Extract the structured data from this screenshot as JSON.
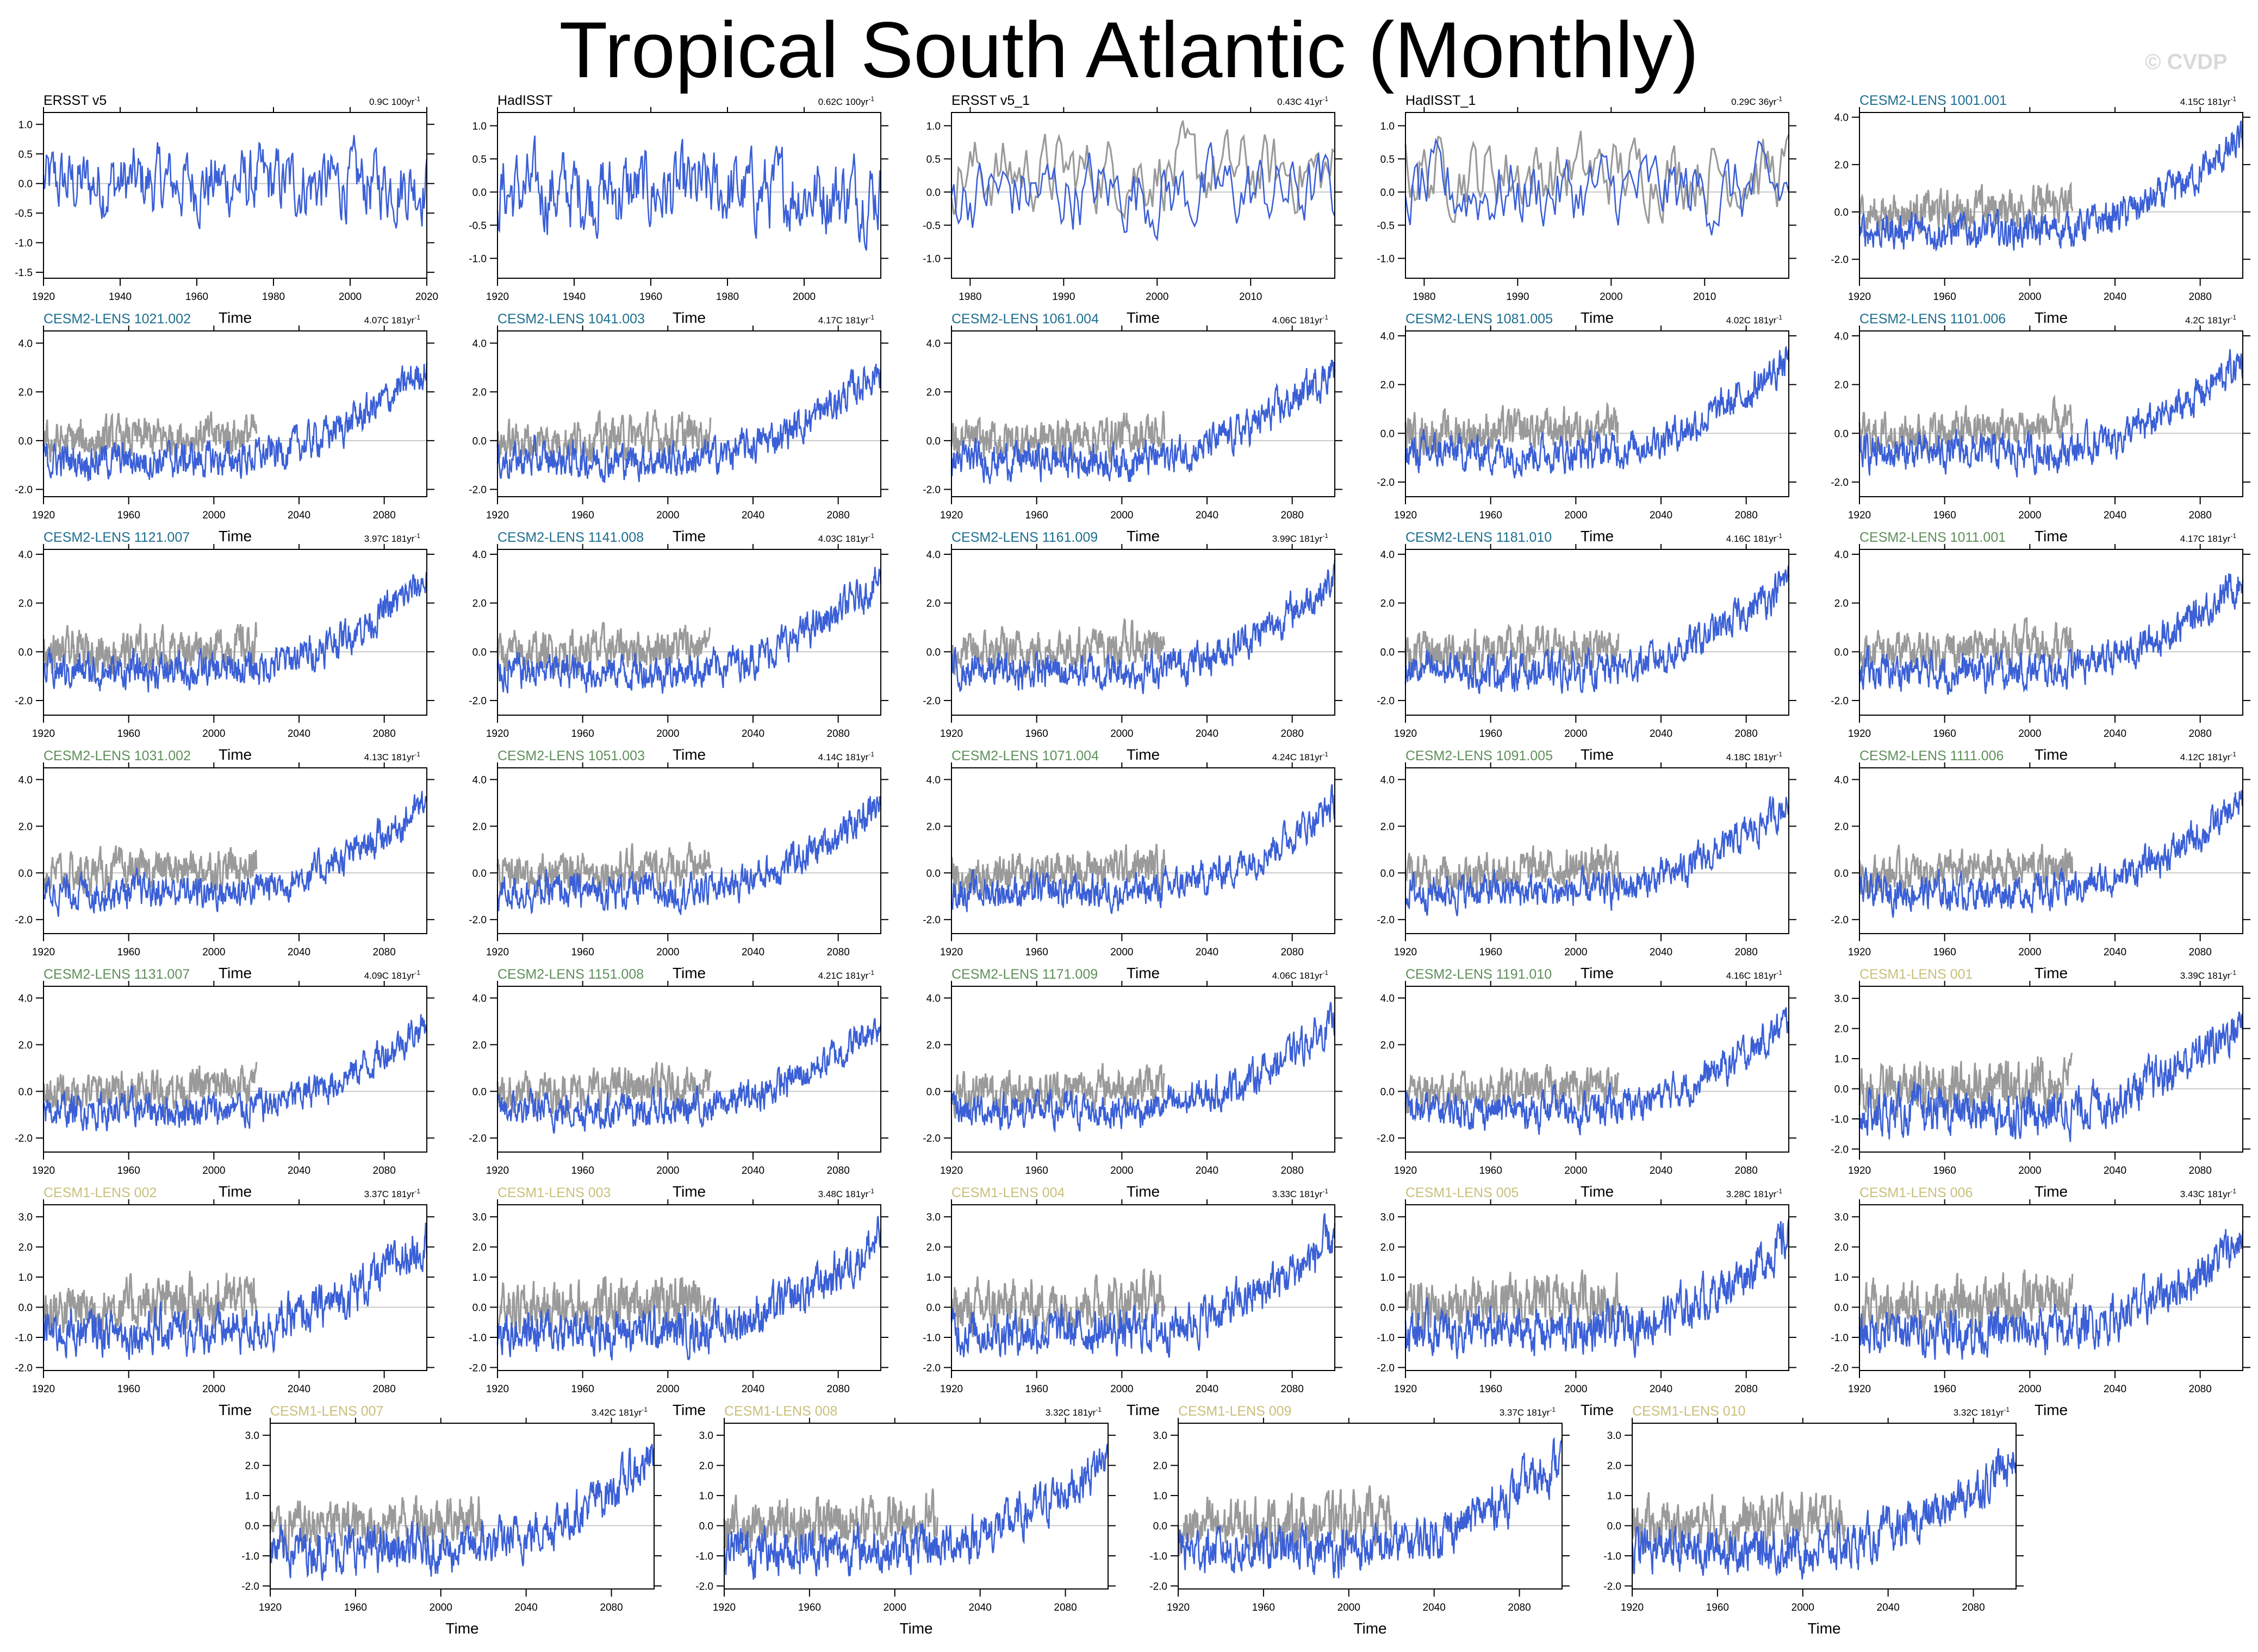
{
  "title": "Tropical South Atlantic (Monthly)",
  "watermark": "© CVDP",
  "colors": {
    "simulation": "#3a5fd6",
    "observation": "#9a9a9a",
    "obs_title": "#000000",
    "cesm2_first": "#1d6e8f",
    "cesm2_second": "#5f8f5a",
    "cesm1": "#c9c07a",
    "zero_line": "#c8c8c8"
  },
  "chart_data": {
    "type": "line",
    "xlabel": "Time",
    "ylabel": "",
    "legend": "none",
    "panels": [
      {
        "title": "ERSST v5",
        "group": "obs",
        "trend": "0.9C 100yr",
        "xlim": [
          1920,
          2020
        ],
        "xticks": [
          1920,
          1940,
          1960,
          1980,
          2000,
          2020
        ],
        "ylim": [
          -1.6,
          1.2
        ],
        "yticks": [
          -1.5,
          -1.0,
          -0.5,
          0.0,
          0.5,
          1.0
        ],
        "obs_overlay": false
      },
      {
        "title": "HadISST",
        "group": "obs",
        "trend": "0.62C 100yr",
        "xlim": [
          1920,
          2020
        ],
        "xticks": [
          1920,
          1940,
          1960,
          1980,
          2000
        ],
        "ylim": [
          -1.3,
          1.2
        ],
        "yticks": [
          -1.0,
          -0.5,
          0.0,
          0.5,
          1.0
        ],
        "obs_overlay": false
      },
      {
        "title": "ERSST v5_1",
        "group": "obs",
        "trend": "0.43C 41yr",
        "xlim": [
          1978,
          2019
        ],
        "xticks": [
          1980,
          1990,
          2000,
          2010
        ],
        "ylim": [
          -1.3,
          1.2
        ],
        "yticks": [
          -1.0,
          -0.5,
          0.0,
          0.5,
          1.0
        ],
        "obs_overlay": true
      },
      {
        "title": "HadISST_1",
        "group": "obs",
        "trend": "0.29C 36yr",
        "xlim": [
          1978,
          2019
        ],
        "xticks": [
          1980,
          1990,
          2000,
          2010
        ],
        "ylim": [
          -1.3,
          1.2
        ],
        "yticks": [
          -1.0,
          -0.5,
          0.0,
          0.5,
          1.0
        ],
        "obs_overlay": true
      },
      {
        "title": "CESM2-LENS 1001.001",
        "group": "cesm2a",
        "trend": "4.15C 181yr",
        "xlim": [
          1920,
          2100
        ],
        "xticks": [
          1920,
          1960,
          2000,
          2040,
          2080
        ],
        "ylim": [
          -2.8,
          4.2
        ],
        "yticks": [
          -2.0,
          0.0,
          2.0,
          4.0
        ],
        "obs_overlay": true
      },
      {
        "title": "CESM2-LENS 1021.002",
        "group": "cesm2a",
        "trend": "4.07C 181yr",
        "xlim": [
          1920,
          2100
        ],
        "xticks": [
          1920,
          1960,
          2000,
          2040,
          2080
        ],
        "ylim": [
          -2.3,
          4.5
        ],
        "yticks": [
          -2.0,
          0.0,
          2.0,
          4.0
        ],
        "obs_overlay": true
      },
      {
        "title": "CESM2-LENS 1041.003",
        "group": "cesm2a",
        "trend": "4.17C 181yr",
        "xlim": [
          1920,
          2100
        ],
        "xticks": [
          1920,
          1960,
          2000,
          2040,
          2080
        ],
        "ylim": [
          -2.3,
          4.5
        ],
        "yticks": [
          -2.0,
          0.0,
          2.0,
          4.0
        ],
        "obs_overlay": true
      },
      {
        "title": "CESM2-LENS 1061.004",
        "group": "cesm2a",
        "trend": "4.06C 181yr",
        "xlim": [
          1920,
          2100
        ],
        "xticks": [
          1920,
          1960,
          2000,
          2040,
          2080
        ],
        "ylim": [
          -2.3,
          4.5
        ],
        "yticks": [
          -2.0,
          0.0,
          2.0,
          4.0
        ],
        "obs_overlay": true
      },
      {
        "title": "CESM2-LENS 1081.005",
        "group": "cesm2a",
        "trend": "4.02C 181yr",
        "xlim": [
          1920,
          2100
        ],
        "xticks": [
          1920,
          1960,
          2000,
          2040,
          2080
        ],
        "ylim": [
          -2.6,
          4.2
        ],
        "yticks": [
          -2.0,
          0.0,
          2.0,
          4.0
        ],
        "obs_overlay": true
      },
      {
        "title": "CESM2-LENS 1101.006",
        "group": "cesm2a",
        "trend": "4.2C 181yr",
        "xlim": [
          1920,
          2100
        ],
        "xticks": [
          1920,
          1960,
          2000,
          2040,
          2080
        ],
        "ylim": [
          -2.6,
          4.2
        ],
        "yticks": [
          -2.0,
          0.0,
          2.0,
          4.0
        ],
        "obs_overlay": true
      },
      {
        "title": "CESM2-LENS 1121.007",
        "group": "cesm2a",
        "trend": "3.97C 181yr",
        "xlim": [
          1920,
          2100
        ],
        "xticks": [
          1920,
          1960,
          2000,
          2040,
          2080
        ],
        "ylim": [
          -2.6,
          4.2
        ],
        "yticks": [
          -2.0,
          0.0,
          2.0,
          4.0
        ],
        "obs_overlay": true
      },
      {
        "title": "CESM2-LENS 1141.008",
        "group": "cesm2a",
        "trend": "4.03C 181yr",
        "xlim": [
          1920,
          2100
        ],
        "xticks": [
          1920,
          1960,
          2000,
          2040,
          2080
        ],
        "ylim": [
          -2.6,
          4.2
        ],
        "yticks": [
          -2.0,
          0.0,
          2.0,
          4.0
        ],
        "obs_overlay": true
      },
      {
        "title": "CESM2-LENS 1161.009",
        "group": "cesm2a",
        "trend": "3.99C 181yr",
        "xlim": [
          1920,
          2100
        ],
        "xticks": [
          1920,
          1960,
          2000,
          2040,
          2080
        ],
        "ylim": [
          -2.6,
          4.2
        ],
        "yticks": [
          -2.0,
          0.0,
          2.0,
          4.0
        ],
        "obs_overlay": true
      },
      {
        "title": "CESM2-LENS 1181.010",
        "group": "cesm2a",
        "trend": "4.16C 181yr",
        "xlim": [
          1920,
          2100
        ],
        "xticks": [
          1920,
          1960,
          2000,
          2040,
          2080
        ],
        "ylim": [
          -2.6,
          4.2
        ],
        "yticks": [
          -2.0,
          0.0,
          2.0,
          4.0
        ],
        "obs_overlay": true
      },
      {
        "title": "CESM2-LENS 1011.001",
        "group": "cesm2b",
        "trend": "4.17C 181yr",
        "xlim": [
          1920,
          2100
        ],
        "xticks": [
          1920,
          1960,
          2000,
          2040,
          2080
        ],
        "ylim": [
          -2.6,
          4.2
        ],
        "yticks": [
          -2.0,
          0.0,
          2.0,
          4.0
        ],
        "obs_overlay": true
      },
      {
        "title": "CESM2-LENS 1031.002",
        "group": "cesm2b",
        "trend": "4.13C 181yr",
        "xlim": [
          1920,
          2100
        ],
        "xticks": [
          1920,
          1960,
          2000,
          2040,
          2080
        ],
        "ylim": [
          -2.6,
          4.5
        ],
        "yticks": [
          -2.0,
          0.0,
          2.0,
          4.0
        ],
        "obs_overlay": true
      },
      {
        "title": "CESM2-LENS 1051.003",
        "group": "cesm2b",
        "trend": "4.14C 181yr",
        "xlim": [
          1920,
          2100
        ],
        "xticks": [
          1920,
          1960,
          2000,
          2040,
          2080
        ],
        "ylim": [
          -2.6,
          4.5
        ],
        "yticks": [
          -2.0,
          0.0,
          2.0,
          4.0
        ],
        "obs_overlay": true
      },
      {
        "title": "CESM2-LENS 1071.004",
        "group": "cesm2b",
        "trend": "4.24C 181yr",
        "xlim": [
          1920,
          2100
        ],
        "xticks": [
          1920,
          1960,
          2000,
          2040,
          2080
        ],
        "ylim": [
          -2.6,
          4.5
        ],
        "yticks": [
          -2.0,
          0.0,
          2.0,
          4.0
        ],
        "obs_overlay": true
      },
      {
        "title": "CESM2-LENS 1091.005",
        "group": "cesm2b",
        "trend": "4.18C 181yr",
        "xlim": [
          1920,
          2100
        ],
        "xticks": [
          1920,
          1960,
          2000,
          2040,
          2080
        ],
        "ylim": [
          -2.6,
          4.5
        ],
        "yticks": [
          -2.0,
          0.0,
          2.0,
          4.0
        ],
        "obs_overlay": true
      },
      {
        "title": "CESM2-LENS 1111.006",
        "group": "cesm2b",
        "trend": "4.12C 181yr",
        "xlim": [
          1920,
          2100
        ],
        "xticks": [
          1920,
          1960,
          2000,
          2040,
          2080
        ],
        "ylim": [
          -2.6,
          4.5
        ],
        "yticks": [
          -2.0,
          0.0,
          2.0,
          4.0
        ],
        "obs_overlay": true
      },
      {
        "title": "CESM2-LENS 1131.007",
        "group": "cesm2b",
        "trend": "4.09C 181yr",
        "xlim": [
          1920,
          2100
        ],
        "xticks": [
          1920,
          1960,
          2000,
          2040,
          2080
        ],
        "ylim": [
          -2.6,
          4.5
        ],
        "yticks": [
          -2.0,
          0.0,
          2.0,
          4.0
        ],
        "obs_overlay": true
      },
      {
        "title": "CESM2-LENS 1151.008",
        "group": "cesm2b",
        "trend": "4.21C 181yr",
        "xlim": [
          1920,
          2100
        ],
        "xticks": [
          1920,
          1960,
          2000,
          2040,
          2080
        ],
        "ylim": [
          -2.6,
          4.5
        ],
        "yticks": [
          -2.0,
          0.0,
          2.0,
          4.0
        ],
        "obs_overlay": true
      },
      {
        "title": "CESM2-LENS 1171.009",
        "group": "cesm2b",
        "trend": "4.06C 181yr",
        "xlim": [
          1920,
          2100
        ],
        "xticks": [
          1920,
          1960,
          2000,
          2040,
          2080
        ],
        "ylim": [
          -2.6,
          4.5
        ],
        "yticks": [
          -2.0,
          0.0,
          2.0,
          4.0
        ],
        "obs_overlay": true
      },
      {
        "title": "CESM2-LENS 1191.010",
        "group": "cesm2b",
        "trend": "4.16C 181yr",
        "xlim": [
          1920,
          2100
        ],
        "xticks": [
          1920,
          1960,
          2000,
          2040,
          2080
        ],
        "ylim": [
          -2.6,
          4.5
        ],
        "yticks": [
          -2.0,
          0.0,
          2.0,
          4.0
        ],
        "obs_overlay": true
      },
      {
        "title": "CESM1-LENS 001",
        "group": "cesm1",
        "trend": "3.39C 181yr",
        "xlim": [
          1920,
          2100
        ],
        "xticks": [
          1920,
          1960,
          2000,
          2040,
          2080
        ],
        "ylim": [
          -2.1,
          3.4
        ],
        "yticks": [
          -2.0,
          -1.0,
          0.0,
          1.0,
          2.0,
          3.0
        ],
        "obs_overlay": true
      },
      {
        "title": "CESM1-LENS 002",
        "group": "cesm1",
        "trend": "3.37C 181yr",
        "xlim": [
          1920,
          2100
        ],
        "xticks": [
          1920,
          1960,
          2000,
          2040,
          2080
        ],
        "ylim": [
          -2.1,
          3.4
        ],
        "yticks": [
          -2.0,
          -1.0,
          0.0,
          1.0,
          2.0,
          3.0
        ],
        "obs_overlay": true
      },
      {
        "title": "CESM1-LENS 003",
        "group": "cesm1",
        "trend": "3.48C 181yr",
        "xlim": [
          1920,
          2100
        ],
        "xticks": [
          1920,
          1960,
          2000,
          2040,
          2080
        ],
        "ylim": [
          -2.1,
          3.4
        ],
        "yticks": [
          -2.0,
          -1.0,
          0.0,
          1.0,
          2.0,
          3.0
        ],
        "obs_overlay": true
      },
      {
        "title": "CESM1-LENS 004",
        "group": "cesm1",
        "trend": "3.33C 181yr",
        "xlim": [
          1920,
          2100
        ],
        "xticks": [
          1920,
          1960,
          2000,
          2040,
          2080
        ],
        "ylim": [
          -2.1,
          3.4
        ],
        "yticks": [
          -2.0,
          -1.0,
          0.0,
          1.0,
          2.0,
          3.0
        ],
        "obs_overlay": true
      },
      {
        "title": "CESM1-LENS 005",
        "group": "cesm1",
        "trend": "3.28C 181yr",
        "xlim": [
          1920,
          2100
        ],
        "xticks": [
          1920,
          1960,
          2000,
          2040,
          2080
        ],
        "ylim": [
          -2.1,
          3.4
        ],
        "yticks": [
          -2.0,
          -1.0,
          0.0,
          1.0,
          2.0,
          3.0
        ],
        "obs_overlay": true
      },
      {
        "title": "CESM1-LENS 006",
        "group": "cesm1",
        "trend": "3.43C 181yr",
        "xlim": [
          1920,
          2100
        ],
        "xticks": [
          1920,
          1960,
          2000,
          2040,
          2080
        ],
        "ylim": [
          -2.1,
          3.4
        ],
        "yticks": [
          -2.0,
          -1.0,
          0.0,
          1.0,
          2.0,
          3.0
        ],
        "obs_overlay": true
      },
      {
        "title": "CESM1-LENS 007",
        "group": "cesm1",
        "trend": "3.42C 181yr",
        "xlim": [
          1920,
          2100
        ],
        "xticks": [
          1920,
          1960,
          2000,
          2040,
          2080
        ],
        "ylim": [
          -2.1,
          3.4
        ],
        "yticks": [
          -2.0,
          -1.0,
          0.0,
          1.0,
          2.0,
          3.0
        ],
        "obs_overlay": true
      },
      {
        "title": "CESM1-LENS 008",
        "group": "cesm1",
        "trend": "3.32C 181yr",
        "xlim": [
          1920,
          2100
        ],
        "xticks": [
          1920,
          1960,
          2000,
          2040,
          2080
        ],
        "ylim": [
          -2.1,
          3.4
        ],
        "yticks": [
          -2.0,
          -1.0,
          0.0,
          1.0,
          2.0,
          3.0
        ],
        "obs_overlay": true
      },
      {
        "title": "CESM1-LENS 009",
        "group": "cesm1",
        "trend": "3.37C 181yr",
        "xlim": [
          1920,
          2100
        ],
        "xticks": [
          1920,
          1960,
          2000,
          2040,
          2080
        ],
        "ylim": [
          -2.1,
          3.4
        ],
        "yticks": [
          -2.0,
          -1.0,
          0.0,
          1.0,
          2.0,
          3.0
        ],
        "obs_overlay": true
      },
      {
        "title": "CESM1-LENS 010",
        "group": "cesm1",
        "trend": "3.32C 181yr",
        "xlim": [
          1920,
          2100
        ],
        "xticks": [
          1920,
          1960,
          2000,
          2040,
          2080
        ],
        "ylim": [
          -2.1,
          3.4
        ],
        "yticks": [
          -2.0,
          -1.0,
          0.0,
          1.0,
          2.0,
          3.0
        ],
        "obs_overlay": true
      }
    ]
  }
}
